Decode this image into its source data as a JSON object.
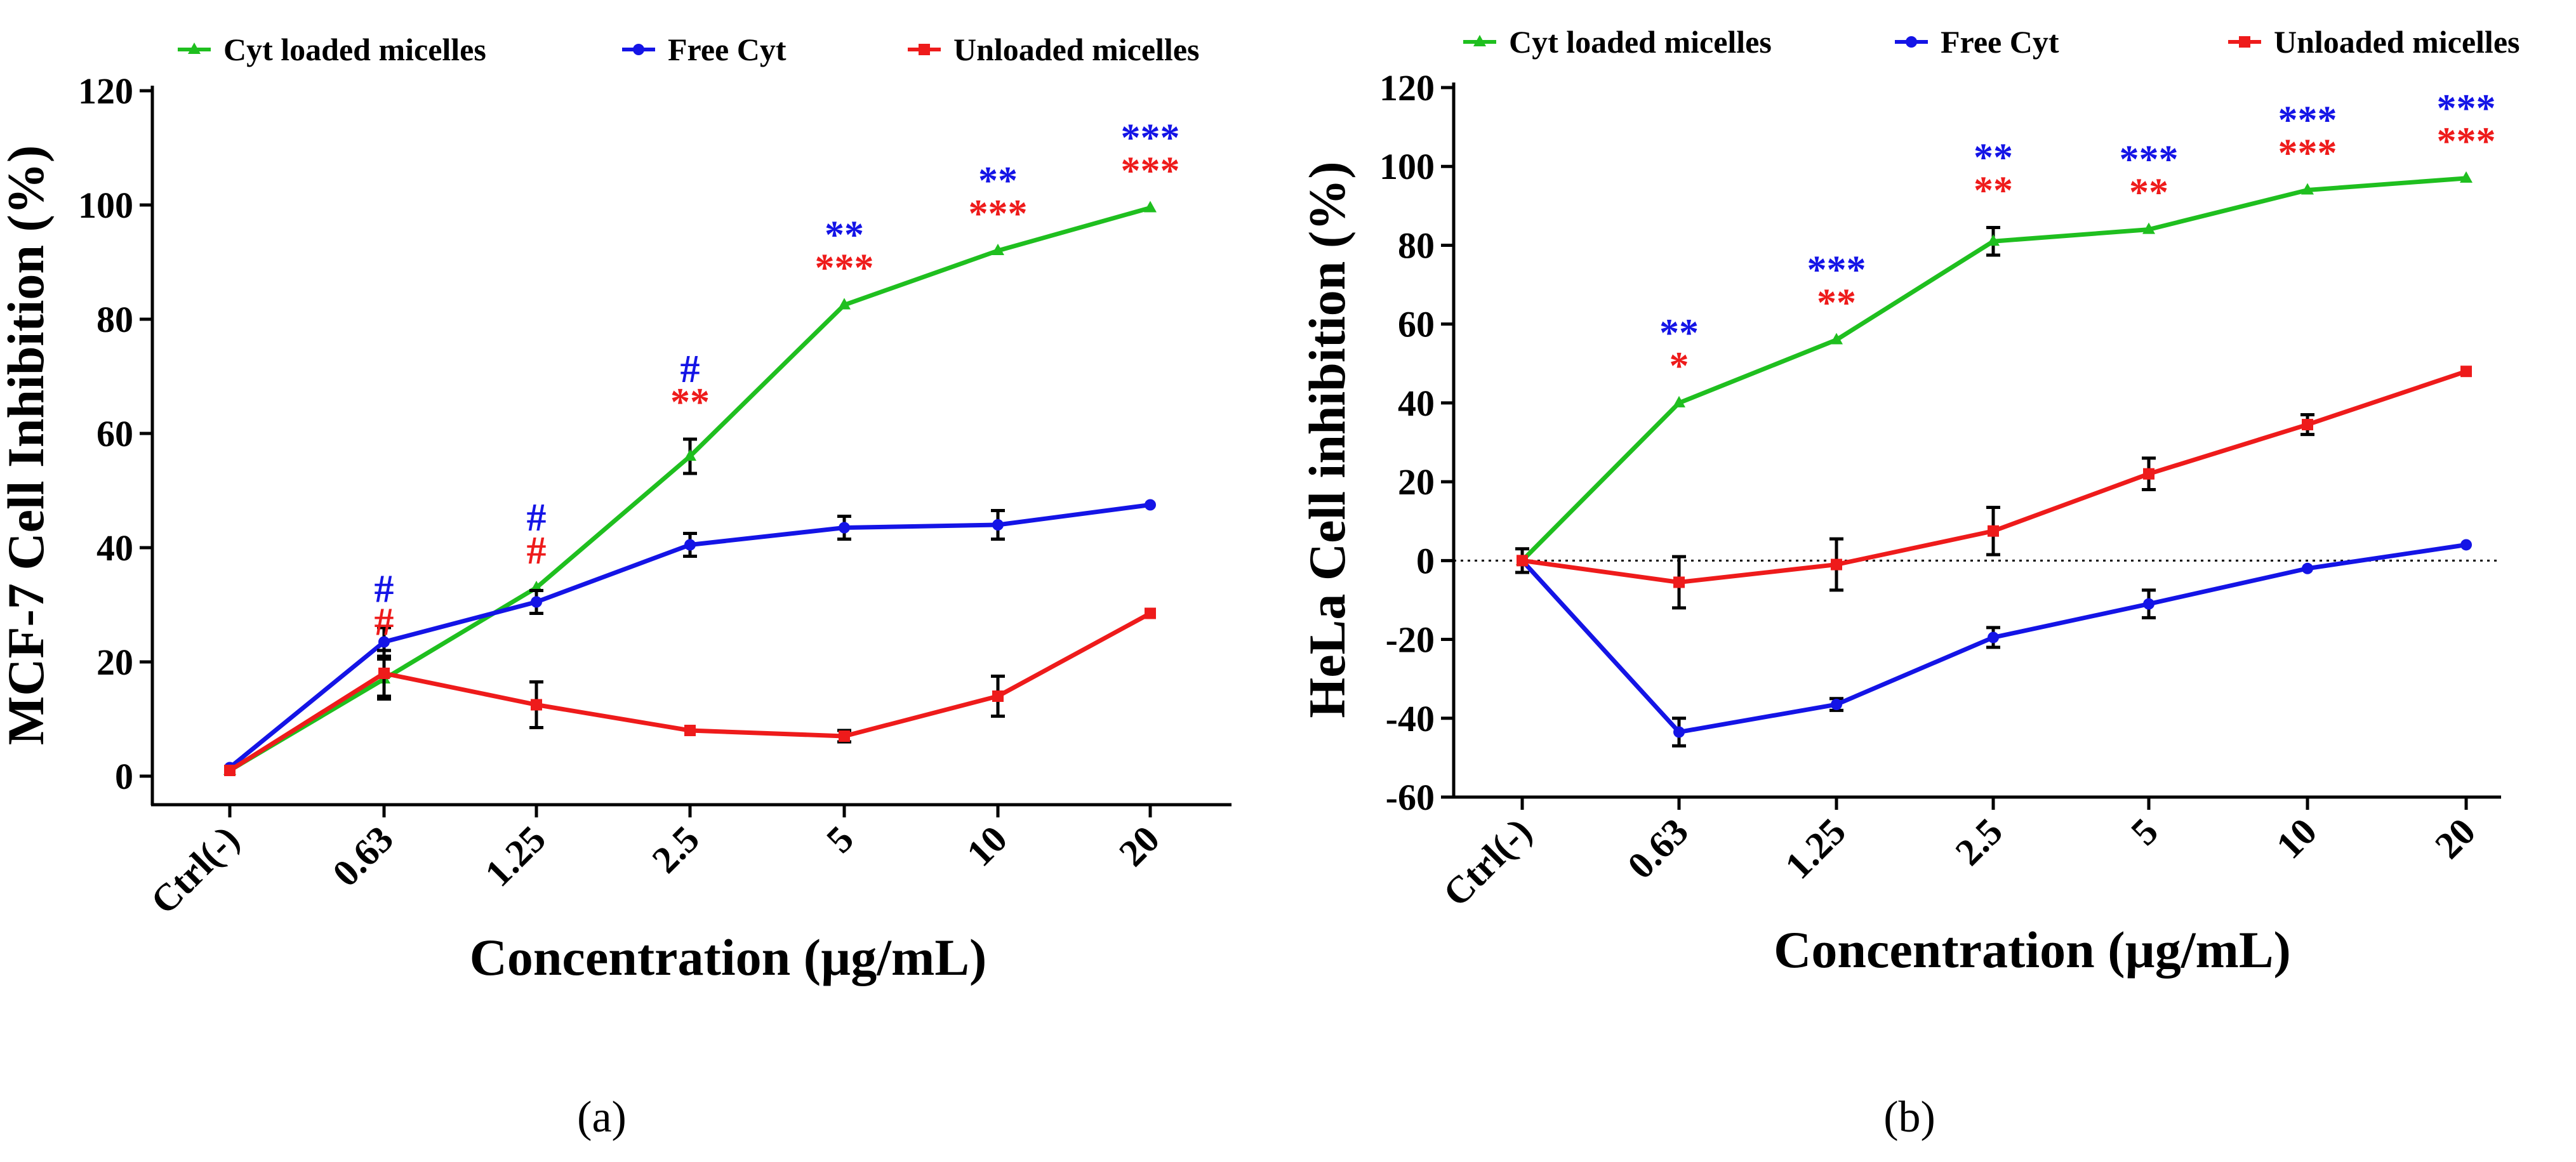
{
  "colors": {
    "green": "#1fbf1f",
    "blue": "#1414e6",
    "red": "#ee1b1b",
    "axis": "#000000"
  },
  "chart_data": [
    {
      "type": "line",
      "panel_label": "(a)",
      "ylabel": "MCF-7 Cell Inhibition (%)",
      "xlabel": "Concentration (µg/mL)",
      "categories": [
        "Ctrl(-)",
        "0.63",
        "1.25",
        "2.5",
        "5",
        "10",
        "20"
      ],
      "ylim": [
        -5,
        120
      ],
      "yticks": [
        0,
        20,
        40,
        60,
        80,
        100,
        120
      ],
      "zero_line": false,
      "legend": [
        {
          "name": "Cyt loaded micelles",
          "color": "green",
          "marker": "triangle"
        },
        {
          "name": "Free Cyt",
          "color": "blue",
          "marker": "circle"
        },
        {
          "name": "Unloaded micelles",
          "color": "red",
          "marker": "square"
        }
      ],
      "series": [
        {
          "name": "Cyt loaded micelles",
          "color": "green",
          "marker": "triangle",
          "values": [
            1,
            17,
            33,
            56,
            82.5,
            92,
            99.5
          ],
          "errors": [
            0,
            3.5,
            0,
            3,
            0,
            0,
            0
          ]
        },
        {
          "name": "Free Cyt",
          "color": "blue",
          "marker": "circle",
          "values": [
            1.5,
            23.5,
            30.5,
            40.5,
            43.5,
            44,
            47.5
          ],
          "errors": [
            0,
            2.5,
            2,
            2,
            2,
            2.5,
            0
          ]
        },
        {
          "name": "Unloaded micelles",
          "color": "red",
          "marker": "square",
          "values": [
            1,
            18,
            12.5,
            8,
            7,
            14,
            28.5
          ],
          "errors": [
            0,
            4,
            4,
            0,
            1,
            3.5,
            0
          ]
        }
      ],
      "annotations": [
        {
          "index": 1,
          "top": "#",
          "bottom": "#"
        },
        {
          "index": 2,
          "top": "#",
          "bottom": "#"
        },
        {
          "index": 3,
          "top": "#",
          "bottom": "**"
        },
        {
          "index": 4,
          "top": "**",
          "bottom": "***"
        },
        {
          "index": 5,
          "top": "**",
          "bottom": "***"
        },
        {
          "index": 6,
          "top": "***",
          "bottom": "***"
        }
      ]
    },
    {
      "type": "line",
      "panel_label": "(b)",
      "ylabel": "HeLa Cell inhibition (%)",
      "xlabel": "Concentration (µg/mL)",
      "categories": [
        "Ctrl(-)",
        "0.63",
        "1.25",
        "2.5",
        "5",
        "10",
        "20"
      ],
      "ylim": [
        -60,
        120
      ],
      "yticks": [
        -60,
        -40,
        -20,
        0,
        20,
        40,
        60,
        80,
        100,
        120
      ],
      "zero_line": true,
      "legend": [
        {
          "name": "Cyt loaded micelles",
          "color": "green",
          "marker": "triangle"
        },
        {
          "name": "Free Cyt",
          "color": "blue",
          "marker": "circle"
        },
        {
          "name": "Unloaded micelles",
          "color": "red",
          "marker": "square"
        }
      ],
      "series": [
        {
          "name": "Cyt loaded micelles",
          "color": "green",
          "marker": "triangle",
          "values": [
            0,
            40,
            56,
            81,
            84,
            94,
            97
          ],
          "errors": [
            0,
            0,
            0,
            3.5,
            0,
            0,
            0
          ]
        },
        {
          "name": "Free Cyt",
          "color": "blue",
          "marker": "circle",
          "values": [
            0,
            -43.5,
            -36.5,
            -19.5,
            -11,
            -2,
            4
          ],
          "errors": [
            3,
            3.5,
            1.5,
            2.5,
            3.5,
            0,
            0
          ]
        },
        {
          "name": "Unloaded micelles",
          "color": "red",
          "marker": "square",
          "values": [
            0,
            -5.5,
            -1,
            7.5,
            22,
            34.5,
            48
          ],
          "errors": [
            0,
            6.5,
            6.5,
            6,
            4,
            2.5,
            0
          ]
        }
      ],
      "annotations": [
        {
          "index": 1,
          "top": "**",
          "bottom": "*"
        },
        {
          "index": 2,
          "top": "***",
          "bottom": "**"
        },
        {
          "index": 3,
          "top": "**",
          "bottom": "**"
        },
        {
          "index": 4,
          "top": "***",
          "bottom": "**"
        },
        {
          "index": 5,
          "top": "***",
          "bottom": "***"
        },
        {
          "index": 6,
          "top": "***",
          "bottom": "***"
        }
      ]
    }
  ]
}
